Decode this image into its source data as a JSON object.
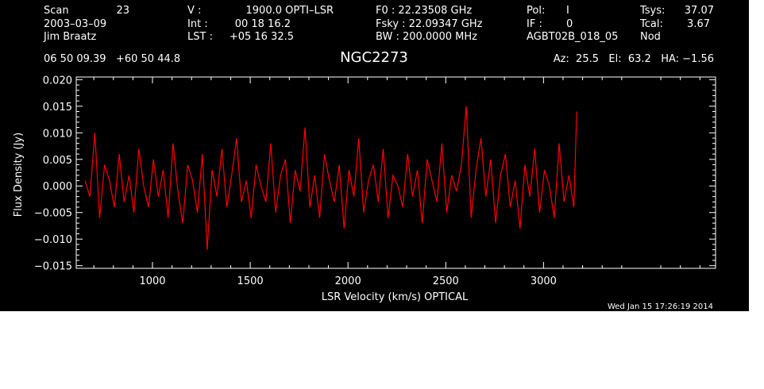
{
  "header": {
    "rows": [
      [
        "Scan",
        "23",
        "V   :",
        "1900.0 OPTI–LSR",
        "F0   :  22.23508 GHz",
        "Pol:",
        "I",
        "Tsys:",
        "37.07"
      ],
      [
        "2003–03–09",
        "",
        "Int  :",
        "00 18 16.2",
        "Fsky :  22.09347 GHz",
        "IF :",
        "0",
        "Tcal:",
        "3.67"
      ],
      [
        "Jim Braatz",
        "",
        "LST :",
        "+05 16 32.5",
        "BW   : 200.0000 MHz",
        "AGBT02B_018_05",
        "",
        "Nod",
        ""
      ]
    ],
    "coords": "06 50 09.39   +60 50 44.8",
    "source": "NGC2273",
    "azelha": "Az:  25.5   El:  63.2   HA: −1.56"
  },
  "timestamp": "Wed Jan 15 17:26:19 2014",
  "colors": {
    "background": "#000000",
    "foreground": "#ffffff",
    "trace": "#ff0000"
  },
  "chart_data": {
    "type": "line",
    "title": "NGC2273",
    "xlabel": "LSR Velocity (km/s) OPTICAL",
    "ylabel": "Flux Density (Jy)",
    "xlim": [
      610,
      3880
    ],
    "ylim": [
      -0.0155,
      0.0205
    ],
    "xticks": [
      1000,
      1500,
      2000,
      2500,
      3000
    ],
    "xtick_labels": [
      "1000",
      "1500",
      "2000",
      "2500",
      "3000"
    ],
    "yticks": [
      0.02,
      0.015,
      0.01,
      0.005,
      0.0,
      -0.005,
      -0.01,
      -0.015
    ],
    "ytick_labels": [
      "0.020",
      "0.015",
      "0.010",
      "0.005",
      "0.000",
      "−0.005",
      "−0.010",
      "−0.015"
    ],
    "series": [
      {
        "x": [
          655,
          680,
          705,
          730,
          755,
          780,
          805,
          830,
          855,
          880,
          905,
          930,
          955,
          980,
          1005,
          1030,
          1055,
          1080,
          1105,
          1130,
          1155,
          1180,
          1205,
          1230,
          1255,
          1280,
          1305,
          1330,
          1355,
          1380,
          1405,
          1430,
          1455,
          1480,
          1505,
          1530,
          1555,
          1580,
          1605,
          1630,
          1655,
          1680,
          1705,
          1730,
          1755,
          1780,
          1805,
          1830,
          1855,
          1880,
          1905,
          1930,
          1955,
          1980,
          2005,
          2030,
          2055,
          2080,
          2105,
          2130,
          2155,
          2180,
          2205,
          2230,
          2255,
          2280,
          2305,
          2330,
          2355,
          2380,
          2405,
          2430,
          2455,
          2480,
          2505,
          2530,
          2555,
          2580,
          2605,
          2630,
          2655,
          2680,
          2705,
          2730,
          2755,
          2780,
          2805,
          2830,
          2855,
          2880,
          2905,
          2930,
          2955,
          2980,
          3005,
          3030,
          3055,
          3080,
          3105,
          3130,
          3155,
          3170
        ],
        "y": [
          0.001,
          -0.002,
          0.01,
          -0.006,
          0.004,
          0.001,
          -0.004,
          0.006,
          -0.003,
          0.002,
          -0.005,
          0.007,
          0.0,
          -0.004,
          0.005,
          -0.002,
          0.003,
          -0.006,
          0.008,
          -0.001,
          -0.007,
          0.004,
          0.001,
          -0.005,
          0.006,
          -0.012,
          0.003,
          -0.002,
          0.007,
          -0.004,
          0.002,
          0.009,
          -0.003,
          0.001,
          -0.006,
          0.004,
          0.0,
          -0.003,
          0.008,
          -0.005,
          0.002,
          0.005,
          -0.007,
          0.003,
          -0.001,
          0.011,
          -0.004,
          0.002,
          -0.006,
          0.006,
          0.001,
          -0.003,
          0.004,
          -0.008,
          0.003,
          -0.002,
          0.009,
          -0.005,
          0.001,
          0.004,
          -0.003,
          0.007,
          -0.006,
          0.002,
          0.0,
          -0.004,
          0.006,
          -0.002,
          0.003,
          -0.007,
          0.005,
          0.001,
          -0.003,
          0.008,
          -0.005,
          0.002,
          -0.001,
          0.004,
          0.015,
          -0.006,
          0.003,
          0.009,
          -0.002,
          0.005,
          -0.007,
          0.002,
          0.006,
          -0.004,
          0.001,
          -0.008,
          0.004,
          -0.002,
          0.007,
          -0.005,
          0.003,
          0.0,
          -0.006,
          0.008,
          -0.003,
          0.002,
          -0.004,
          0.014
        ]
      }
    ]
  }
}
